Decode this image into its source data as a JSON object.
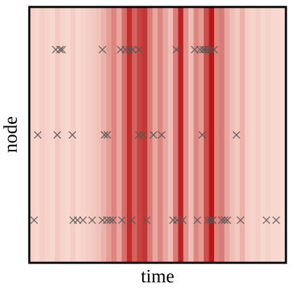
{
  "chart_data": {
    "type": "heatmap-events",
    "xlabel": "time",
    "ylabel": "node",
    "xlim": [
      0,
      100
    ],
    "ylim": [
      3,
      0
    ],
    "intensity_range": [
      0,
      1
    ],
    "low_color": "#fde9df",
    "high_color": "#b50c0c",
    "intensity": [
      0.1,
      0.08,
      0.12,
      0.1,
      0.08,
      0.15,
      0.1,
      0.08,
      0.12,
      0.08,
      0.1,
      0.12,
      0.15,
      0.18,
      0.25,
      0.35,
      0.45,
      0.3,
      0.55,
      0.85,
      0.6,
      0.75,
      0.8,
      0.5,
      0.3,
      0.45,
      0.3,
      0.2,
      0.5,
      0.9,
      0.4,
      0.2,
      0.45,
      0.35,
      0.7,
      0.95,
      0.45,
      0.5,
      0.3,
      0.2,
      0.15,
      0.25,
      0.12,
      0.1,
      0.12,
      0.08,
      0.1,
      0.08,
      0.08,
      0.06
    ],
    "marker_color": "#555555",
    "series": [
      {
        "y": 0.5,
        "x": [
          10.3,
          12.0,
          12.8,
          28.5,
          35.6,
          37.5,
          38.9,
          40.2,
          42.7,
          57.3,
          64.4,
          66.6,
          67.7,
          68.5,
          69.6,
          70.7,
          72.0
        ]
      },
      {
        "y": 1.5,
        "x": [
          3.3,
          10.9,
          16.8,
          29.3,
          30.4,
          42.7,
          44.3,
          48.4,
          51.6,
          67.4,
          80.7
        ]
      },
      {
        "y": 2.5,
        "x": [
          1.9,
          17.1,
          18.8,
          20.9,
          24.5,
          28.5,
          30.2,
          31.5,
          32.6,
          36.1,
          39.9,
          45.7,
          56.0,
          57.6,
          59.8,
          65.5,
          69.6,
          70.7,
          71.5,
          75.0,
          76.1,
          77.2,
          82.3,
          92.4,
          96.2
        ]
      }
    ]
  }
}
